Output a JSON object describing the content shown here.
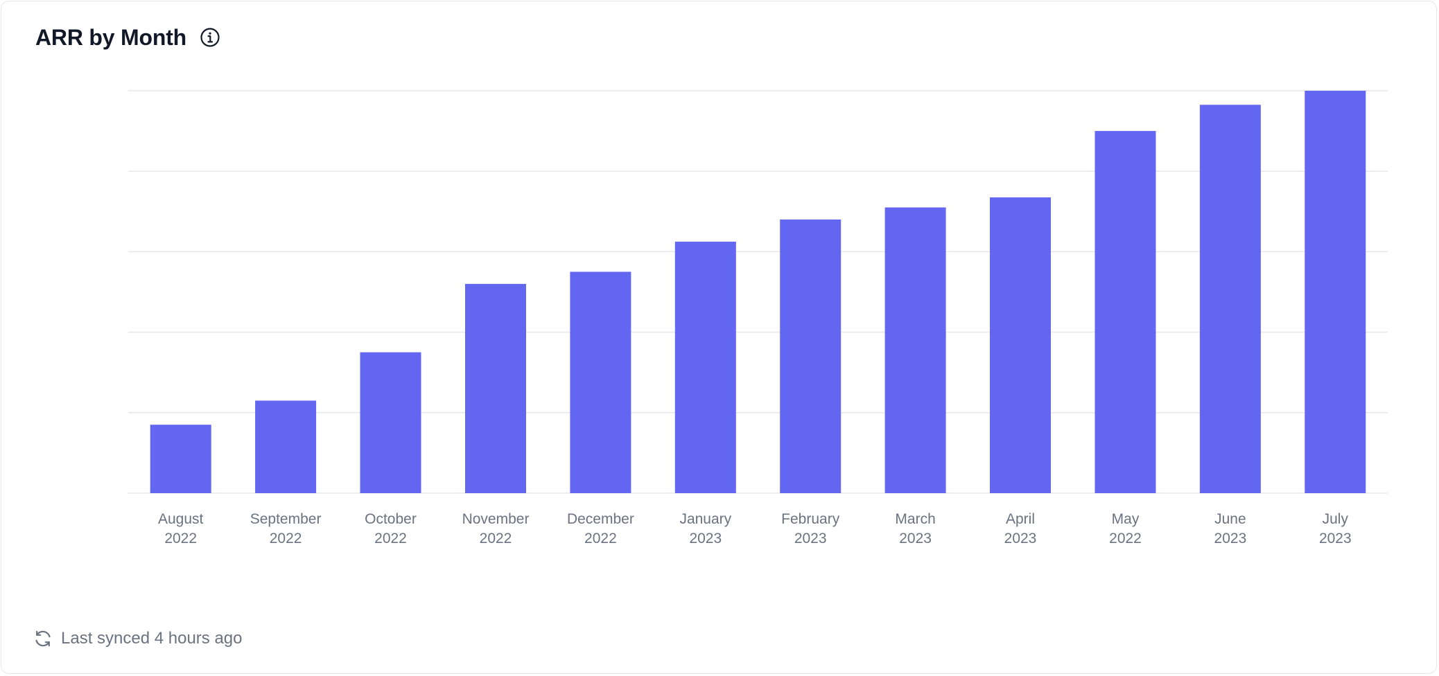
{
  "card": {
    "title": "ARR by Month",
    "info_icon": "info-circle-icon"
  },
  "footer": {
    "sync_icon": "refresh-icon",
    "sync_text": "Last synced 4 hours ago"
  },
  "colors": {
    "bar": "#6366f1",
    "grid": "#e5e7eb",
    "axis_text": "#6b7280",
    "title": "#111827"
  },
  "chart_data": {
    "type": "bar",
    "title": "ARR by Month",
    "xlabel": "",
    "ylabel": "",
    "categories": [
      [
        "August",
        "2022"
      ],
      [
        "September",
        "2022"
      ],
      [
        "October",
        "2022"
      ],
      [
        "November",
        "2022"
      ],
      [
        "December",
        "2022"
      ],
      [
        "January",
        "2023"
      ],
      [
        "February",
        "2023"
      ],
      [
        "March",
        "2023"
      ],
      [
        "April",
        "2023"
      ],
      [
        "May",
        "2022"
      ],
      [
        "June",
        "2023"
      ],
      [
        "July",
        "2023"
      ]
    ],
    "values": [
      17,
      23,
      35,
      52,
      55,
      62.5,
      68,
      71,
      73.5,
      90,
      96.5,
      100
    ],
    "ylim": [
      0,
      100
    ],
    "y_ticks": [
      0,
      20,
      40,
      60,
      80,
      100
    ],
    "grid": true,
    "y_tick_labels_visible": false,
    "legend": "none"
  }
}
